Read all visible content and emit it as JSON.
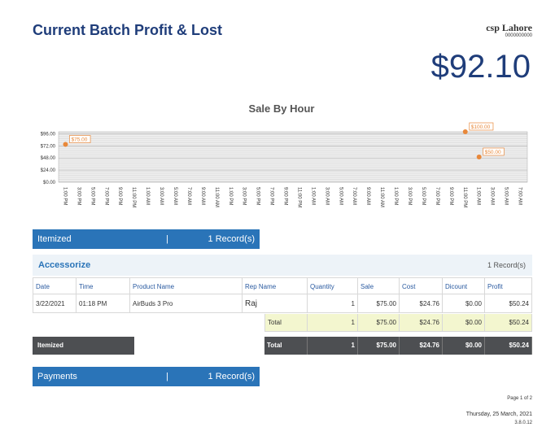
{
  "header": {
    "title": "Current Batch Profit & Lost",
    "company": "csp Lahore",
    "code": "0000000000",
    "amount": "$92.10"
  },
  "chart_data": {
    "type": "line",
    "title": "Sale By Hour",
    "categories": [
      "1:00 PM",
      "3:00 PM",
      "5:00 PM",
      "7:00 PM",
      "9:00 PM",
      "11:00 PM",
      "1:00 AM",
      "3:00 AM",
      "5:00 AM",
      "7:00 AM",
      "9:00 AM",
      "11:00 AM",
      "1:00 PM",
      "3:00 PM",
      "5:00 PM",
      "7:00 PM",
      "9:00 PM",
      "11:00 PM",
      "1:00 AM",
      "3:00 AM",
      "5:00 AM",
      "7:00 AM",
      "9:00 AM",
      "11:00 AM",
      "1:00 PM",
      "3:00 PM",
      "5:00 PM",
      "7:00 PM",
      "9:00 PM",
      "11:00 PM",
      "1:00 AM",
      "3:00 AM",
      "5:00 AM",
      "7:00 AM"
    ],
    "values": [
      75,
      null,
      null,
      null,
      null,
      null,
      null,
      null,
      null,
      null,
      null,
      null,
      null,
      null,
      null,
      null,
      null,
      null,
      null,
      null,
      null,
      null,
      null,
      null,
      null,
      null,
      null,
      null,
      null,
      100,
      50,
      null,
      null,
      null
    ],
    "value_labels": [
      "$75.00",
      null,
      null,
      null,
      null,
      null,
      null,
      null,
      null,
      null,
      null,
      null,
      null,
      null,
      null,
      null,
      null,
      null,
      null,
      null,
      null,
      null,
      null,
      null,
      null,
      null,
      null,
      null,
      null,
      "$100.00",
      "$50.00",
      null,
      null,
      null
    ],
    "color": "#e8883a",
    "ylim": [
      0,
      100
    ],
    "yticks": [
      {
        "value": 0,
        "label": "$0.00"
      },
      {
        "value": 24,
        "label": "$24.00"
      },
      {
        "value": 48,
        "label": "$48.00"
      },
      {
        "value": 72,
        "label": "$72.00"
      },
      {
        "value": 96,
        "label": "$96.00"
      }
    ],
    "grid": true
  },
  "itemized_bar": {
    "label": "Itemized",
    "separator": "|",
    "records": "1 Record(s)"
  },
  "group": {
    "name": "Accessorize",
    "records": "1 Record(s)"
  },
  "table": {
    "columns": [
      "Date",
      "Time",
      "Product Name",
      "Rep Name",
      "Quantity",
      "Sale",
      "Cost",
      "Dicount",
      "Profit"
    ],
    "rows": [
      [
        "3/22/2021",
        "01:18 PM",
        "AirBuds 3 Pro",
        "Raj",
        "1",
        "$75.00",
        "$24.76",
        "$0.00",
        "$50.24"
      ]
    ],
    "total": [
      "Total",
      "1",
      "$75.00",
      "$24.76",
      "$0.00",
      "$50.24"
    ]
  },
  "grand": {
    "label": "Itemized",
    "total": [
      "Total",
      "1",
      "$75.00",
      "$24.76",
      "$0.00",
      "$50.24"
    ]
  },
  "payments_bar": {
    "label": "Payments",
    "separator": "|",
    "records": "1 Record(s)"
  },
  "footer": {
    "page": "Page 1 of 2",
    "date": "Thursday, 25 March, 2021",
    "version": "3.8.0.12"
  }
}
